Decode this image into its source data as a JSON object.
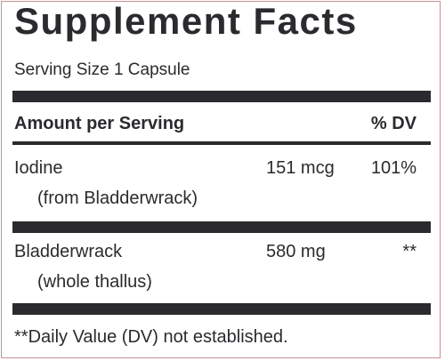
{
  "title": "Supplement Facts",
  "serving_size": "Serving Size 1 Capsule",
  "header": {
    "amount_label": "Amount per Serving",
    "dv_label": "% DV"
  },
  "rows": [
    {
      "name": "Iodine",
      "source": "(from Bladderwrack)",
      "amount": "151 mcg",
      "dv": "101%"
    },
    {
      "name": "Bladderwrack",
      "source": "(whole thallus)",
      "amount": "580 mg",
      "dv": "**"
    }
  ],
  "footnote": "**Daily Value (DV) not established.",
  "colors": {
    "ink": "#2b2a2e",
    "border": "#c98f96"
  }
}
